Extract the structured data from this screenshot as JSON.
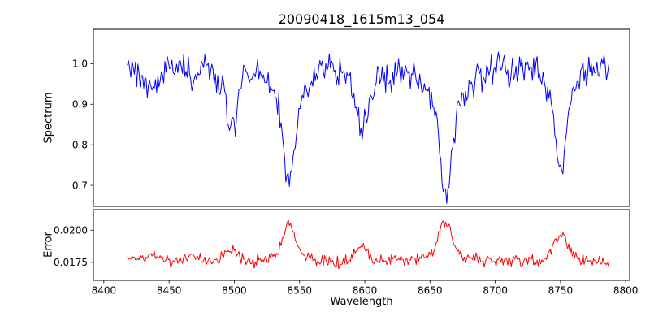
{
  "figure": {
    "title": "20090418_1615m13_054",
    "background": "#ffffff",
    "frame_color": "#000000"
  },
  "x_axis": {
    "label": "Wavelength",
    "ticks": [
      8400,
      8450,
      8500,
      8550,
      8600,
      8650,
      8700,
      8750,
      8800
    ],
    "xlim": [
      8392,
      8803
    ]
  },
  "chart_data": [
    {
      "type": "line",
      "name": "spectrum",
      "ylabel": "Spectrum",
      "color": "#0000ff",
      "legend": "none",
      "grid": false,
      "xlim": [
        8392,
        8803
      ],
      "ylim": [
        0.648,
        1.085
      ],
      "yticks": [
        0.7,
        0.8,
        0.9,
        1.0
      ],
      "ytick_labels": [
        "0.7",
        "0.8",
        "0.9",
        "1.0"
      ],
      "x_start": 8418,
      "x_end": 8787,
      "x_step": 0.9,
      "continuum": 0.995,
      "noise_amplitude": 0.045,
      "seed": 20090418,
      "absorption_lines": [
        {
          "center": 8433,
          "depth": 0.045,
          "sigma": 5
        },
        {
          "center": 8440,
          "depth": 0.03,
          "sigma": 3
        },
        {
          "center": 8468,
          "depth": 0.035,
          "sigma": 3
        },
        {
          "center": 8498,
          "depth": 0.115,
          "sigma": 3.5
        },
        {
          "center": 8498,
          "depth": 0.05,
          "sigma": 9
        },
        {
          "center": 8542,
          "depth": 0.2,
          "sigma": 4
        },
        {
          "center": 8542,
          "depth": 0.09,
          "sigma": 13
        },
        {
          "center": 8598,
          "depth": 0.1,
          "sigma": 4
        },
        {
          "center": 8598,
          "depth": 0.055,
          "sigma": 10
        },
        {
          "center": 8620,
          "depth": 0.03,
          "sigma": 3
        },
        {
          "center": 8662,
          "depth": 0.215,
          "sigma": 4.5
        },
        {
          "center": 8662,
          "depth": 0.095,
          "sigma": 15
        },
        {
          "center": 8690,
          "depth": 0.025,
          "sigma": 3
        },
        {
          "center": 8713,
          "depth": 0.02,
          "sigma": 4
        },
        {
          "center": 8750,
          "depth": 0.19,
          "sigma": 4
        },
        {
          "center": 8750,
          "depth": 0.07,
          "sigma": 11
        }
      ],
      "bumps": []
    },
    {
      "type": "line",
      "name": "error",
      "ylabel": "Error",
      "color": "#ff0000",
      "legend": "none",
      "grid": false,
      "xlim": [
        8392,
        8803
      ],
      "ylim": [
        0.0161,
        0.0216
      ],
      "yticks": [
        0.0175,
        0.02
      ],
      "ytick_labels": [
        "0.0175",
        "0.0200"
      ],
      "x_start": 8418,
      "x_end": 8787,
      "x_step": 0.9,
      "baseline": 0.01755,
      "noise_amplitude": 0.0006,
      "seed": 1615,
      "absorption_lines": [],
      "bumps": [
        {
          "center": 8420,
          "height": 0.0003,
          "sigma": 4
        },
        {
          "center": 8433,
          "height": 0.0004,
          "sigma": 5
        },
        {
          "center": 8440,
          "height": 0.0003,
          "sigma": 3
        },
        {
          "center": 8468,
          "height": 0.0006,
          "sigma": 4
        },
        {
          "center": 8498,
          "height": 0.0011,
          "sigma": 5
        },
        {
          "center": 8542,
          "height": 0.0024,
          "sigma": 5
        },
        {
          "center": 8542,
          "height": 0.0005,
          "sigma": 13
        },
        {
          "center": 8598,
          "height": 0.0012,
          "sigma": 5
        },
        {
          "center": 8620,
          "height": 0.0003,
          "sigma": 3
        },
        {
          "center": 8662,
          "height": 0.0026,
          "sigma": 5
        },
        {
          "center": 8662,
          "height": 0.0005,
          "sigma": 14
        },
        {
          "center": 8750,
          "height": 0.0017,
          "sigma": 5
        },
        {
          "center": 8750,
          "height": 0.0004,
          "sigma": 11
        }
      ]
    }
  ]
}
